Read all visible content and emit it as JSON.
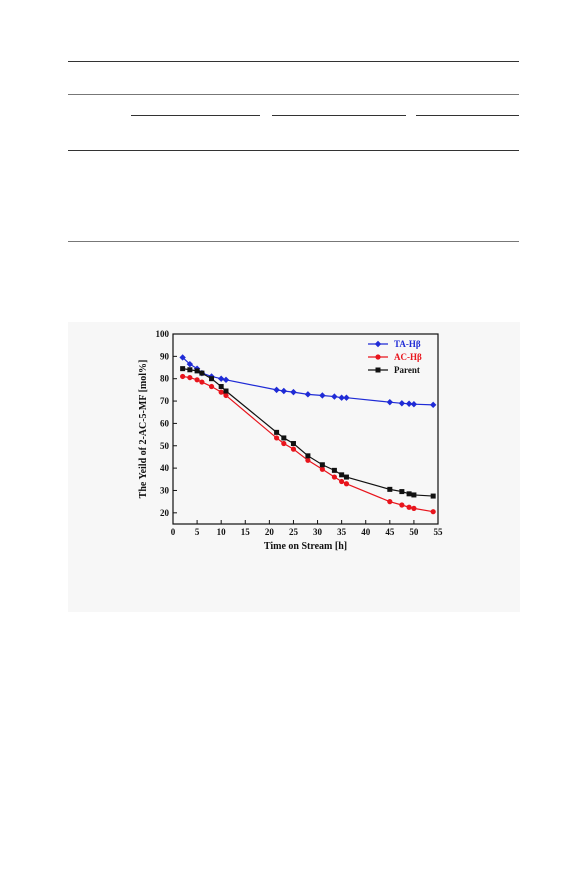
{
  "chart_data": {
    "type": "line",
    "xlabel": "Time on Stream [h]",
    "ylabel": "The Yeild of 2-AC-5-MF [mol%]",
    "xlim": [
      0,
      55
    ],
    "ylim": [
      15,
      100
    ],
    "xticks": [
      0,
      5,
      10,
      15,
      20,
      25,
      30,
      35,
      40,
      45,
      50,
      55
    ],
    "yticks": [
      20,
      30,
      40,
      50,
      60,
      70,
      80,
      90,
      100
    ],
    "legend_position": "top-right",
    "series": [
      {
        "name": "TA-Hβ",
        "color": "#1f2bd6",
        "marker": "diamond",
        "x": [
          2,
          3.5,
          5,
          6,
          8,
          10,
          11,
          21.5,
          23,
          25,
          28,
          31,
          33.5,
          35,
          36,
          45,
          47.5,
          49,
          50,
          54
        ],
        "values": [
          89.5,
          86.5,
          84.5,
          82.5,
          81,
          80,
          79.5,
          75,
          74.5,
          74,
          73,
          72.5,
          72,
          71.5,
          71.5,
          69.5,
          69,
          68.8,
          68.6,
          68.3
        ]
      },
      {
        "name": "AC-Hβ",
        "color": "#e8141c",
        "marker": "circle",
        "x": [
          2,
          3.5,
          5,
          6,
          8,
          10,
          11,
          21.5,
          23,
          25,
          28,
          31,
          33.5,
          35,
          36,
          45,
          47.5,
          49,
          50,
          54
        ],
        "values": [
          81,
          80.5,
          79.5,
          78.5,
          76.5,
          74,
          72.5,
          53.5,
          51,
          48.5,
          43.5,
          39.5,
          36,
          34,
          33,
          25,
          23.5,
          22.5,
          22,
          20.5
        ]
      },
      {
        "name": "Parent",
        "color": "#111111",
        "marker": "square",
        "x": [
          2,
          3.5,
          5,
          6,
          8,
          10,
          11,
          21.5,
          23,
          25,
          28,
          31,
          33.5,
          35,
          36,
          45,
          47.5,
          49,
          50,
          54
        ],
        "values": [
          84.5,
          84,
          83.5,
          82.5,
          80,
          76.5,
          74.5,
          56,
          53.5,
          51,
          45.5,
          41.5,
          39,
          37,
          36,
          30.5,
          29.5,
          28.5,
          28,
          27.5
        ]
      }
    ]
  }
}
